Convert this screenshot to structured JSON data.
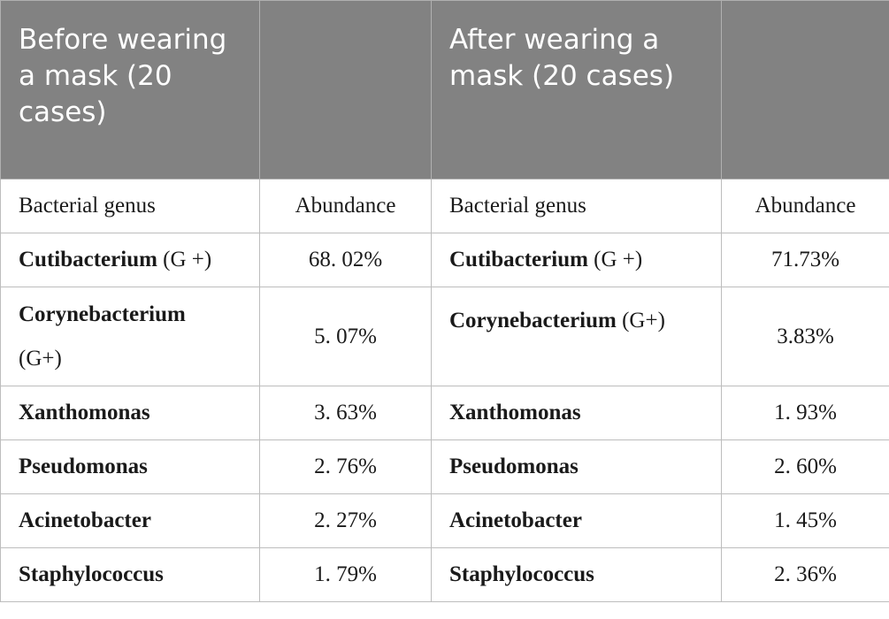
{
  "header": {
    "before_title": "Before wearing a mask (20 cases)",
    "after_title": "After wearing a mask (20 cases)"
  },
  "columns": {
    "before_genus": "Bacterial genus",
    "before_abundance": "Abundance",
    "after_genus": "Bacterial genus",
    "after_abundance": "Abundance"
  },
  "rows": [
    {
      "before_genus": "Cutibacterium",
      "before_gram": " (G +)",
      "before_abundance": "68. 02%",
      "after_genus": "Cutibacterium",
      "after_gram": " (G +)",
      "after_abundance": "71.73%"
    },
    {
      "before_genus": "Corynebacterium",
      "before_gram": "(G+)",
      "before_abundance": "5. 07%",
      "after_genus": "Corynebacterium",
      "after_gram": " (G+)",
      "after_abundance": "3.83%"
    },
    {
      "before_genus": "Xanthomonas",
      "before_gram": "",
      "before_abundance": "3. 63%",
      "after_genus": "Xanthomonas",
      "after_gram": "",
      "after_abundance": "1. 93%"
    },
    {
      "before_genus": "Pseudomonas",
      "before_gram": "",
      "before_abundance": "2. 76%",
      "after_genus": "Pseudomonas",
      "after_gram": "",
      "after_abundance": "2. 60%"
    },
    {
      "before_genus": "Acinetobacter",
      "before_gram": "",
      "before_abundance": "2. 27%",
      "after_genus": "Acinetobacter",
      "after_gram": "",
      "after_abundance": "1. 45%"
    },
    {
      "before_genus": "Staphylococcus",
      "before_gram": "",
      "before_abundance": "1. 79%",
      "after_genus": "Staphylococcus",
      "after_gram": "",
      "after_abundance": "2. 36%"
    }
  ]
}
